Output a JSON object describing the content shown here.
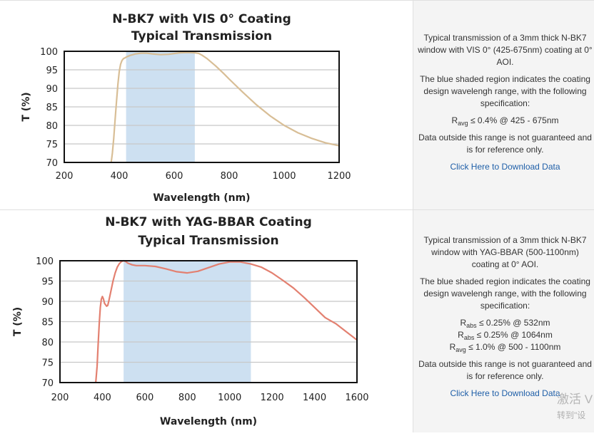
{
  "panels": [
    {
      "chart_data": {
        "type": "line",
        "title": [
          "N-BK7 with VIS 0° Coating",
          "Typical Transmission"
        ],
        "xlabel": "Wavelength (nm)",
        "ylabel": "T (%)",
        "xlim": [
          200,
          1200
        ],
        "ylim": [
          70,
          100
        ],
        "xticks": [
          200,
          400,
          600,
          800,
          1000,
          1200
        ],
        "yticks": [
          70,
          75,
          80,
          85,
          90,
          95,
          100
        ],
        "grid": "horizontal",
        "shaded_region": [
          425,
          675
        ],
        "line_color": "#d8be96",
        "shade_color": "#cde0f1",
        "series": [
          {
            "x": [
              370,
              375,
              380,
              385,
              390,
              395,
              400,
              405,
              410,
              415,
              420,
              425,
              430,
              440,
              450,
              460,
              480,
              500,
              520,
              550,
              580,
              600,
              620,
              650,
              675,
              690,
              700,
              720,
              750,
              780,
              800,
              850,
              900,
              950,
              1000,
              1050,
              1100,
              1150,
              1200
            ],
            "y": [
              69.5,
              72.5,
              76.5,
              81.5,
              86.5,
              91,
              94.5,
              96.5,
              97.5,
              98.0,
              98.2,
              98.4,
              98.6,
              98.9,
              99.1,
              99.3,
              99.5,
              99.5,
              99.3,
              99.1,
              99.2,
              99.4,
              99.6,
              99.7,
              99.6,
              99.4,
              99.0,
              98.0,
              96.1,
              94.0,
              92.5,
              88.9,
              85.5,
              82.5,
              80.0,
              78.0,
              76.5,
              75.3,
              74.5
            ]
          }
        ]
      },
      "info": {
        "desc": "Typical transmission of a 3mm thick N-BK7 window with VIS 0° (425-675nm) coating at 0° AOI.",
        "shade_note": "The blue shaded region indicates the coating design wavelengh range, with the following specification:",
        "specs": [
          {
            "sym": "R",
            "sub": "avg",
            "text": " ≤ 0.4% @ 425 - 675nm"
          }
        ],
        "disclaimer": "Data outside this range is not guaranteed and is for reference only.",
        "link": "Click Here to Download Data"
      }
    },
    {
      "chart_data": {
        "type": "line",
        "title": [
          "N-BK7 with YAG-BBAR Coating",
          "Typical Transmission"
        ],
        "xlabel": "Wavelength (nm)",
        "ylabel": "T (%)",
        "xlim": [
          200,
          1600
        ],
        "ylim": [
          70,
          100
        ],
        "xticks": [
          200,
          400,
          600,
          800,
          1000,
          1200,
          1400,
          1600
        ],
        "yticks": [
          70,
          75,
          80,
          85,
          90,
          95,
          100
        ],
        "grid": "horizontal",
        "shaded_region": [
          500,
          1100
        ],
        "line_color": "#e38070",
        "shade_color": "#cde0f1",
        "series": [
          {
            "x": [
              368,
              375,
              380,
              385,
              390,
              395,
              400,
              405,
              410,
              420,
              425,
              430,
              440,
              450,
              460,
              470,
              480,
              490,
              500,
              510,
              520,
              540,
              560,
              600,
              650,
              700,
              750,
              800,
              850,
              900,
              950,
              1000,
              1050,
              1100,
              1150,
              1200,
              1250,
              1300,
              1350,
              1400,
              1450,
              1500,
              1550,
              1600
            ],
            "y": [
              69.5,
              74,
              79.5,
              84.5,
              88.5,
              90.5,
              91.2,
              90.6,
              89.5,
              88.8,
              89.0,
              90.0,
              92.5,
              95.0,
              97.0,
              98.4,
              99.3,
              99.8,
              100.0,
              99.8,
              99.4,
              99.0,
              98.8,
              98.8,
              98.6,
              98.0,
              97.3,
              97.0,
              97.4,
              98.3,
              99.2,
              99.7,
              99.7,
              99.2,
              98.4,
              97.0,
              95.2,
              93.3,
              91.0,
              88.5,
              86.0,
              84.5,
              82.5,
              80.5
            ]
          }
        ]
      },
      "info": {
        "desc": "Typical transmission of a 3mm thick N-BK7 window with YAG-BBAR (500-1100nm) coating at 0° AOI.",
        "shade_note": "The blue shaded region indicates the coating design wavelengh range, with the following specification:",
        "specs": [
          {
            "sym": "R",
            "sub": "abs",
            "text": " ≤ 0.25% @ 532nm"
          },
          {
            "sym": "R",
            "sub": "abs",
            "text": " ≤ 0.25% @ 1064nm"
          },
          {
            "sym": "R",
            "sub": "avg",
            "text": " ≤ 1.0% @ 500 - 1100nm"
          }
        ],
        "disclaimer": "Data outside this range is not guaranteed and is for reference only.",
        "link": "Click Here to Download Data"
      }
    }
  ],
  "watermark": {
    "line1": "激活 V",
    "line2": "转到\"设"
  }
}
